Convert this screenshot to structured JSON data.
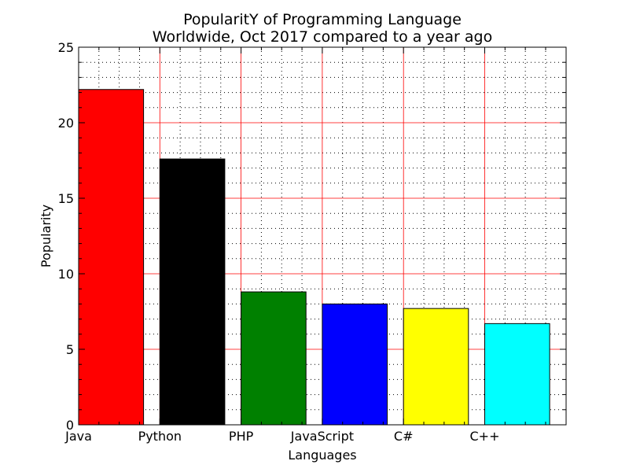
{
  "chart_data": {
    "type": "bar",
    "title": "PopularitY of Programming Language",
    "subtitle": "Worldwide, Oct 2017 compared to a year ago",
    "xlabel": "Languages",
    "ylabel": "Popularity",
    "categories": [
      "Java",
      "Python",
      "PHP",
      "JavaScript",
      "C#",
      "C++"
    ],
    "values": [
      22.2,
      17.6,
      8.8,
      8.0,
      7.7,
      6.7
    ],
    "colors": [
      "#ff0000",
      "#000000",
      "#008000",
      "#0000ff",
      "#ffff00",
      "#00ffff"
    ],
    "ylim": [
      0,
      25
    ],
    "y_ticks": [
      "0",
      "5",
      "10",
      "15",
      "20",
      "25"
    ],
    "grid": {
      "major": true,
      "major_color": "#ff0000",
      "minor": true,
      "minor_color": "#000000",
      "minor_style": "dotted"
    }
  }
}
